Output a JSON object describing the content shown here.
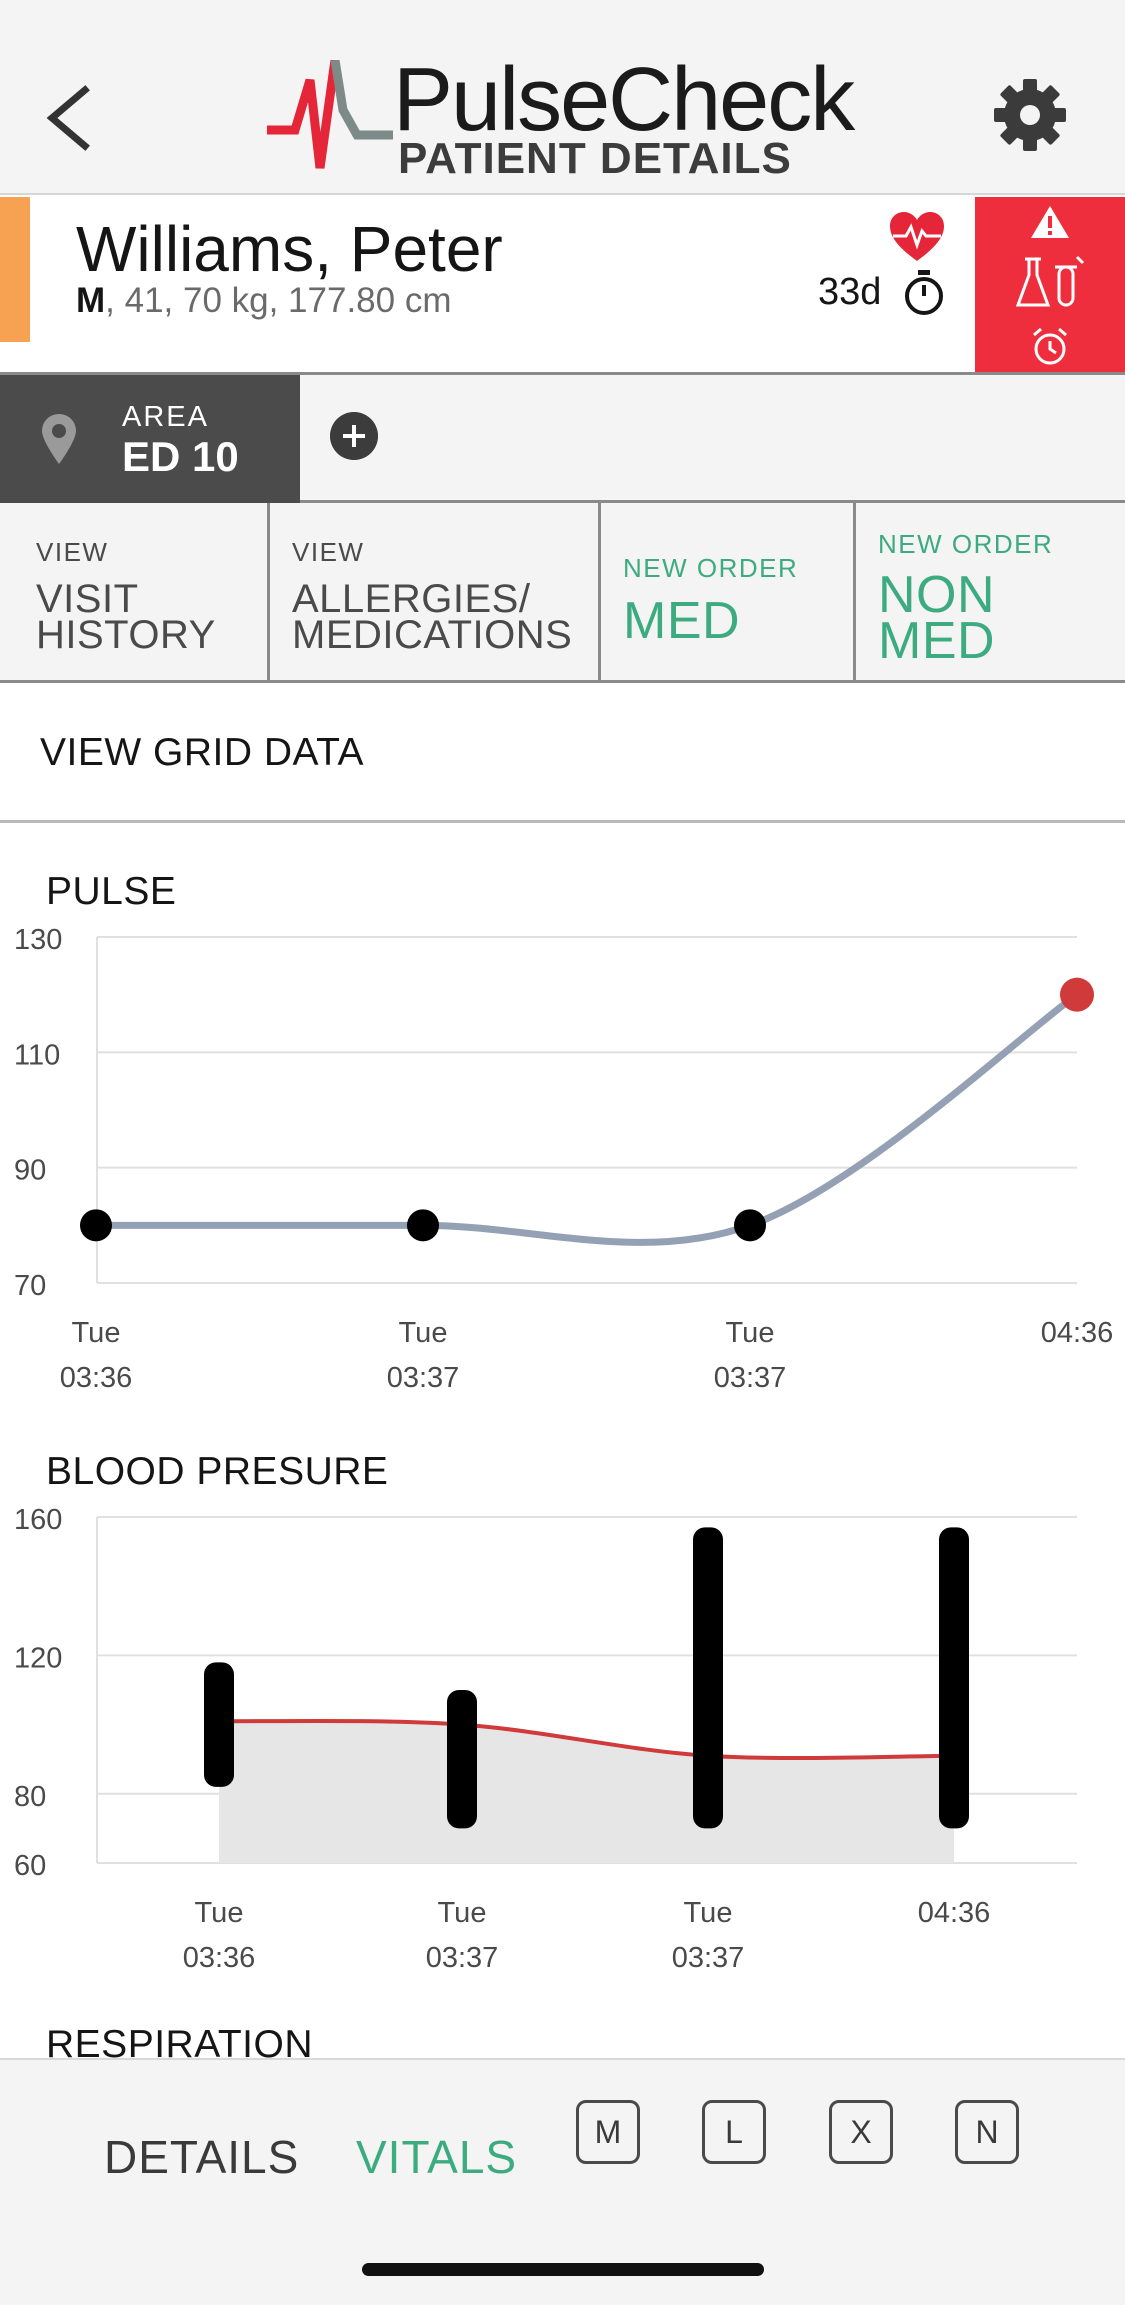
{
  "header": {
    "app_name": "PulseCheck",
    "subtitle": "PATIENT DETAILS",
    "back_icon": "chevron-left-icon",
    "settings_icon": "gear-icon"
  },
  "patient": {
    "name": "Williams, Peter",
    "sex": "M",
    "details": ", 41, 70 kg, 177.80 cm",
    "length_of_stay": "33d",
    "acuity_color": "#f7a152",
    "alert_color": "#ee2e3c",
    "alert_icons": [
      "warning-icon",
      "flask-icon",
      "alarm-clock-icon"
    ]
  },
  "area": {
    "label": "AREA",
    "value": "ED 10",
    "add_icon": "plus-icon"
  },
  "actions": [
    {
      "label": "VIEW",
      "title_lines": [
        "VISIT",
        "HISTORY"
      ],
      "color": "#4a4a4a"
    },
    {
      "label": "VIEW",
      "title_lines": [
        "ALLERGIES/",
        "MEDICATIONS"
      ],
      "color": "#4a4a4a"
    },
    {
      "label": "NEW ORDER",
      "title_lines": [
        "MED"
      ],
      "color": "#3dab80"
    },
    {
      "label": "NEW ORDER",
      "title_lines": [
        "NON",
        "MED"
      ],
      "color": "#3dab80"
    }
  ],
  "grid_link": "VIEW GRID DATA",
  "charts": {
    "pulse_title": "PULSE",
    "bp_title": "BLOOD PRESURE",
    "respiration_title": "RESPIRATION"
  },
  "chart_data": [
    {
      "type": "line",
      "title": "PULSE",
      "x_labels": [
        [
          "Tue",
          "03:36"
        ],
        [
          "Tue",
          "03:37"
        ],
        [
          "Tue",
          "03:37"
        ],
        [
          "",
          "04:36"
        ]
      ],
      "values": [
        80,
        80,
        80,
        120
      ],
      "ylim": [
        70,
        130
      ],
      "yticks": [
        70,
        90,
        110,
        130
      ],
      "line_color": "#94a0b4",
      "point_color": "#000000",
      "alert_point_color": "#d03a3a",
      "grid": true
    },
    {
      "type": "bar",
      "title": "BLOOD PRESURE",
      "x_labels": [
        [
          "Tue",
          "03:36"
        ],
        [
          "Tue",
          "03:37"
        ],
        [
          "Tue",
          "03:37"
        ],
        [
          "",
          "04:36"
        ]
      ],
      "ranges": [
        [
          82,
          118
        ],
        [
          70,
          110
        ],
        [
          70,
          157
        ],
        [
          70,
          157
        ]
      ],
      "mean_line": [
        101,
        100,
        91,
        91
      ],
      "ylim": [
        60,
        160
      ],
      "yticks": [
        60,
        80,
        120,
        160
      ],
      "bar_color": "#000000",
      "line_color": "#d03a3a",
      "area_color": "#e6e6e6",
      "grid": true
    }
  ],
  "bottom_nav": {
    "tabs": [
      "DETAILS",
      "VITALS"
    ],
    "active": "VITALS",
    "keys": [
      "M",
      "L",
      "X",
      "N"
    ]
  }
}
